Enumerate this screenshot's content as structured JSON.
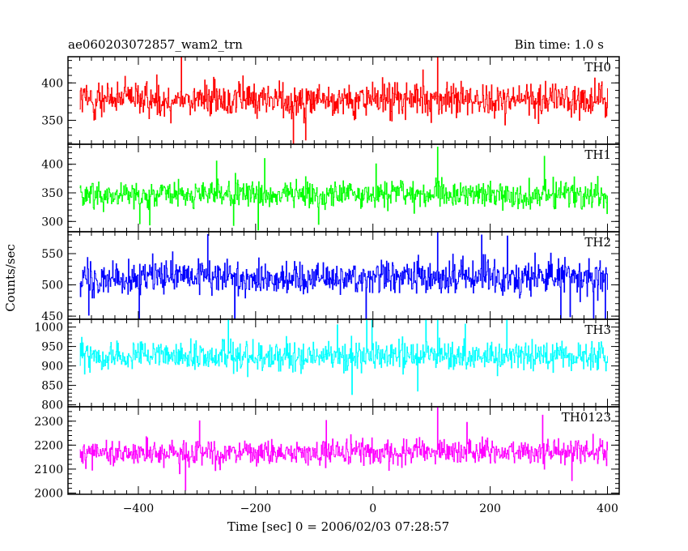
{
  "chart_data": {
    "type": "line",
    "title": "ae060203072857_wam2_trn",
    "subtitle": "Bin time: 1.0 s",
    "xlabel": "Time [sec] 0 = 2006/02/03 07:28:57",
    "ylabel": "Counts/sec",
    "xlim": [
      -520,
      420
    ],
    "x_ticks": [
      -400,
      -200,
      0,
      200,
      400
    ],
    "x_tick_labels": [
      "−400",
      "−200",
      "0",
      "200",
      "400"
    ],
    "x_range": [
      -500,
      400
    ],
    "bin_time": 1.0,
    "grid": false,
    "panels": [
      {
        "name": "TH0",
        "color": "#ff0000",
        "ylim": [
          318,
          435
        ],
        "y_ticks": [
          350,
          400
        ],
        "y_tick_labels": [
          "350",
          "400"
        ],
        "mean": 378,
        "spread": 20,
        "max": 435,
        "min": 318
      },
      {
        "name": "TH1",
        "color": "#00ff00",
        "ylim": [
          282,
          435
        ],
        "y_ticks": [
          300,
          350,
          400
        ],
        "y_tick_labels": [
          "300",
          "350",
          "400"
        ],
        "mean": 347,
        "spread": 19,
        "max": 430,
        "min": 285
      },
      {
        "name": "TH2",
        "color": "#0000ff",
        "ylim": [
          445,
          585
        ],
        "y_ticks": [
          450,
          500,
          550
        ],
        "y_tick_labels": [
          "450",
          "500",
          "550"
        ],
        "mean": 512,
        "spread": 23,
        "max": 585,
        "min": 445
      },
      {
        "name": "TH3",
        "color": "#00ffff",
        "ylim": [
          795,
          1020
        ],
        "y_ticks": [
          800,
          850,
          900,
          950,
          1000
        ],
        "y_tick_labels": [
          "800",
          "850",
          "900",
          "950",
          "1000"
        ],
        "mean": 925,
        "spread": 31,
        "max": 1020,
        "min": 815
      },
      {
        "name": "TH0123",
        "color": "#ff00ff",
        "ylim": [
          1995,
          2360
        ],
        "y_ticks": [
          2000,
          2100,
          2200,
          2300
        ],
        "y_tick_labels": [
          "2000",
          "2100",
          "2200",
          "2300"
        ],
        "mean": 2170,
        "spread": 45,
        "max": 2365,
        "min": 2000
      }
    ]
  }
}
